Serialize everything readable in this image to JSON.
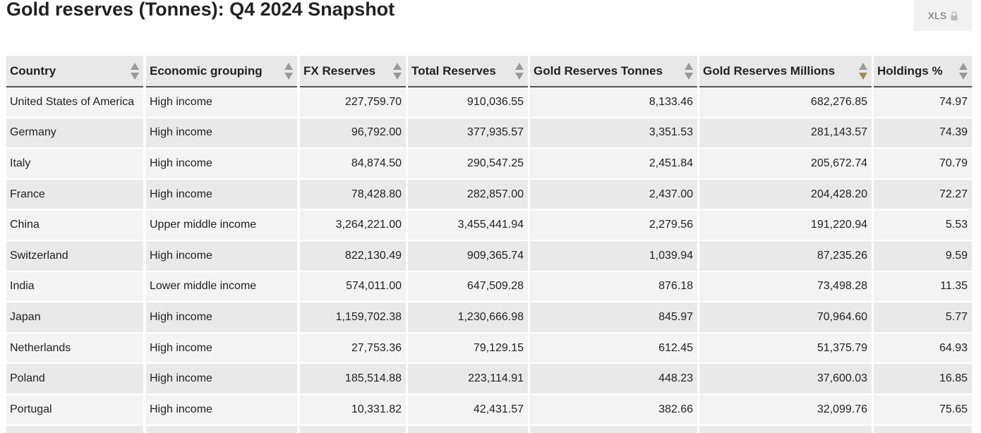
{
  "header": {
    "title": "Gold reserves (Tonnes): Q4 2024 Snapshot",
    "export_button": "XLS"
  },
  "table": {
    "columns": [
      "Country",
      "Economic grouping",
      "FX Reserves",
      "Total Reserves",
      "Gold Reserves Tonnes",
      "Gold Reserves Millions",
      "Holdings %"
    ],
    "sorted_column": 5,
    "sort_direction": "descending",
    "rows": [
      [
        "United States of America",
        "High income",
        "227,759.70",
        "910,036.55",
        "8,133.46",
        "682,276.85",
        "74.97"
      ],
      [
        "Germany",
        "High income",
        "96,792.00",
        "377,935.57",
        "3,351.53",
        "281,143.57",
        "74.39"
      ],
      [
        "Italy",
        "High income",
        "84,874.50",
        "290,547.25",
        "2,451.84",
        "205,672.74",
        "70.79"
      ],
      [
        "France",
        "High income",
        "78,428.80",
        "282,857.00",
        "2,437.00",
        "204,428.20",
        "72.27"
      ],
      [
        "China",
        "Upper middle income",
        "3,264,221.00",
        "3,455,441.94",
        "2,279.56",
        "191,220.94",
        "5.53"
      ],
      [
        "Switzerland",
        "High income",
        "822,130.49",
        "909,365.74",
        "1,039.94",
        "87,235.26",
        "9.59"
      ],
      [
        "India",
        "Lower middle income",
        "574,011.00",
        "647,509.28",
        "876.18",
        "73,498.28",
        "11.35"
      ],
      [
        "Japan",
        "High income",
        "1,159,702.38",
        "1,230,666.98",
        "845.97",
        "70,964.60",
        "5.77"
      ],
      [
        "Netherlands",
        "High income",
        "27,753.36",
        "79,129.15",
        "612.45",
        "51,375.79",
        "64.93"
      ],
      [
        "Poland",
        "High income",
        "185,514.88",
        "223,114.91",
        "448.23",
        "37,600.03",
        "16.85"
      ],
      [
        "Portugal",
        "High income",
        "10,331.82",
        "42,431.57",
        "382.66",
        "32,099.76",
        "75.65"
      ]
    ]
  }
}
